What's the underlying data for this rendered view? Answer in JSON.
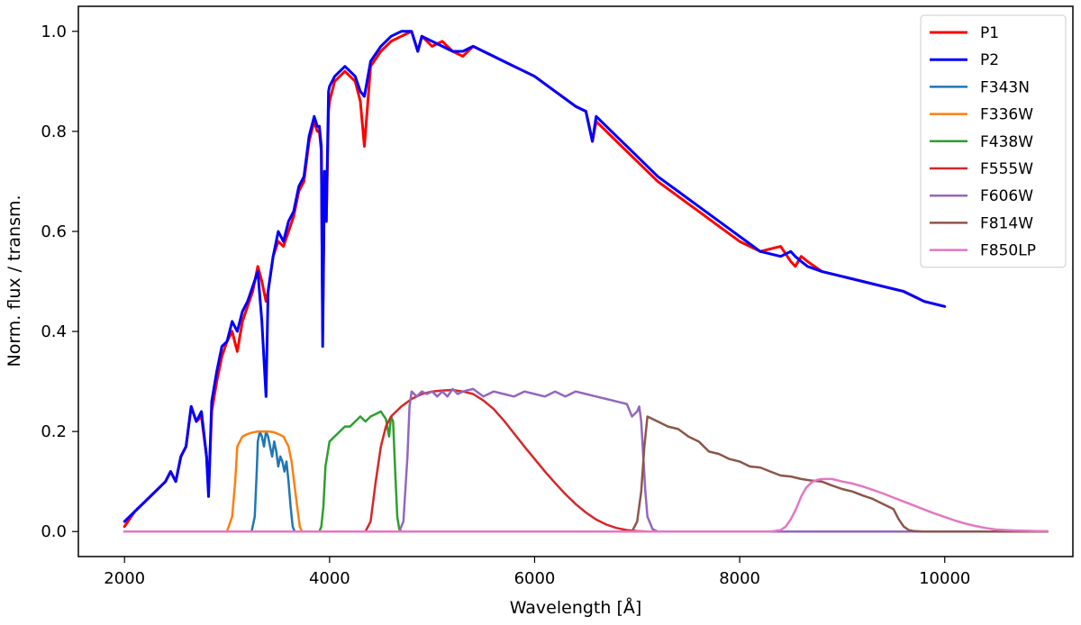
{
  "chart_data": {
    "type": "line",
    "xlabel": "Wavelength [Å]",
    "ylabel": "Norm. flux / transm.",
    "xlim": [
      1550,
      11250
    ],
    "ylim": [
      -0.05,
      1.05
    ],
    "xticks": [
      2000,
      4000,
      6000,
      8000,
      10000
    ],
    "xtick_labels": [
      "2000",
      "4000",
      "6000",
      "8000",
      "10000"
    ],
    "yticks": [
      0.0,
      0.2,
      0.4,
      0.6,
      0.8,
      1.0
    ],
    "ytick_labels": [
      "0.0",
      "0.2",
      "0.4",
      "0.6",
      "0.8",
      "1.0"
    ],
    "grid": false,
    "legend_position": "top-right",
    "series": [
      {
        "name": "P1",
        "color": "#ff0000",
        "width": 3,
        "x": [
          2000,
          2100,
          2200,
          2300,
          2400,
          2450,
          2500,
          2550,
          2600,
          2650,
          2700,
          2750,
          2800,
          2820,
          2850,
          2900,
          2950,
          3000,
          3050,
          3100,
          3150,
          3200,
          3250,
          3300,
          3340,
          3380,
          3400,
          3450,
          3500,
          3550,
          3600,
          3650,
          3700,
          3750,
          3800,
          3850,
          3880,
          3900,
          3920,
          3933,
          3950,
          3968,
          3990,
          4000,
          4050,
          4100,
          4150,
          4200,
          4250,
          4300,
          4340,
          4400,
          4500,
          4600,
          4700,
          4800,
          4861,
          4900,
          5000,
          5100,
          5200,
          5300,
          5400,
          5500,
          5600,
          5700,
          5800,
          5900,
          6000,
          6200,
          6400,
          6500,
          6563,
          6600,
          6800,
          7000,
          7200,
          7400,
          7600,
          7800,
          8000,
          8200,
          8400,
          8498,
          8542,
          8600,
          8662,
          8800,
          9000,
          9200,
          9400,
          9600,
          9800,
          10000
        ],
        "y": [
          0.01,
          0.04,
          0.06,
          0.08,
          0.1,
          0.12,
          0.1,
          0.15,
          0.17,
          0.25,
          0.22,
          0.23,
          0.15,
          0.08,
          0.24,
          0.3,
          0.35,
          0.38,
          0.4,
          0.36,
          0.42,
          0.45,
          0.48,
          0.53,
          0.5,
          0.46,
          0.48,
          0.55,
          0.58,
          0.57,
          0.6,
          0.63,
          0.68,
          0.7,
          0.78,
          0.82,
          0.8,
          0.8,
          0.76,
          0.4,
          0.72,
          0.62,
          0.84,
          0.86,
          0.9,
          0.91,
          0.92,
          0.91,
          0.9,
          0.86,
          0.77,
          0.93,
          0.96,
          0.98,
          0.99,
          1.0,
          0.96,
          0.99,
          0.97,
          0.98,
          0.96,
          0.95,
          0.97,
          0.96,
          0.95,
          0.94,
          0.93,
          0.92,
          0.91,
          0.88,
          0.85,
          0.84,
          0.78,
          0.82,
          0.78,
          0.74,
          0.7,
          0.67,
          0.64,
          0.61,
          0.58,
          0.56,
          0.57,
          0.54,
          0.53,
          0.55,
          0.54,
          0.52,
          0.51,
          0.5,
          0.49,
          0.48,
          0.46,
          0.45
        ]
      },
      {
        "name": "P2",
        "color": "#0000ff",
        "width": 3,
        "x": [
          2000,
          2100,
          2200,
          2300,
          2400,
          2450,
          2500,
          2550,
          2600,
          2650,
          2700,
          2750,
          2800,
          2820,
          2850,
          2900,
          2950,
          3000,
          3050,
          3100,
          3150,
          3200,
          3250,
          3300,
          3340,
          3380,
          3400,
          3450,
          3500,
          3550,
          3600,
          3650,
          3700,
          3750,
          3800,
          3850,
          3880,
          3900,
          3920,
          3933,
          3950,
          3968,
          3990,
          4000,
          4050,
          4100,
          4150,
          4200,
          4250,
          4300,
          4340,
          4400,
          4500,
          4600,
          4700,
          4800,
          4861,
          4900,
          5000,
          5100,
          5200,
          5300,
          5400,
          5500,
          5600,
          5700,
          5800,
          5900,
          6000,
          6200,
          6400,
          6500,
          6563,
          6600,
          6800,
          7000,
          7200,
          7400,
          7600,
          7800,
          8000,
          8200,
          8400,
          8498,
          8542,
          8600,
          8662,
          8800,
          9000,
          9200,
          9400,
          9600,
          9800,
          10000
        ],
        "y": [
          0.02,
          0.04,
          0.06,
          0.08,
          0.1,
          0.12,
          0.1,
          0.15,
          0.17,
          0.25,
          0.22,
          0.24,
          0.15,
          0.07,
          0.26,
          0.32,
          0.37,
          0.38,
          0.42,
          0.4,
          0.44,
          0.46,
          0.49,
          0.52,
          0.42,
          0.27,
          0.48,
          0.55,
          0.6,
          0.58,
          0.62,
          0.64,
          0.69,
          0.71,
          0.79,
          0.83,
          0.81,
          0.81,
          0.77,
          0.37,
          0.72,
          0.62,
          0.88,
          0.89,
          0.91,
          0.92,
          0.93,
          0.92,
          0.91,
          0.88,
          0.87,
          0.94,
          0.97,
          0.99,
          1.0,
          1.0,
          0.96,
          0.99,
          0.98,
          0.97,
          0.96,
          0.96,
          0.97,
          0.96,
          0.95,
          0.94,
          0.93,
          0.92,
          0.91,
          0.88,
          0.85,
          0.84,
          0.78,
          0.83,
          0.79,
          0.75,
          0.71,
          0.68,
          0.65,
          0.62,
          0.59,
          0.56,
          0.55,
          0.56,
          0.55,
          0.54,
          0.53,
          0.52,
          0.51,
          0.5,
          0.49,
          0.48,
          0.46,
          0.45
        ]
      },
      {
        "name": "F343N",
        "color": "#1f77b4",
        "width": 2.5,
        "x": [
          2000,
          3240,
          3270,
          3290,
          3300,
          3320,
          3340,
          3360,
          3380,
          3400,
          3420,
          3440,
          3460,
          3480,
          3500,
          3520,
          3540,
          3560,
          3580,
          3600,
          3620,
          3640,
          3660,
          11000
        ],
        "y": [
          0,
          0,
          0.03,
          0.12,
          0.18,
          0.2,
          0.19,
          0.17,
          0.2,
          0.19,
          0.17,
          0.15,
          0.18,
          0.16,
          0.13,
          0.15,
          0.14,
          0.12,
          0.14,
          0.1,
          0.05,
          0.01,
          0,
          0
        ]
      },
      {
        "name": "F336W",
        "color": "#ff7f0e",
        "width": 2.5,
        "x": [
          2000,
          3000,
          3050,
          3080,
          3100,
          3150,
          3200,
          3250,
          3300,
          3350,
          3400,
          3450,
          3500,
          3550,
          3600,
          3630,
          3660,
          3690,
          3710,
          3730,
          11000
        ],
        "y": [
          0,
          0,
          0.03,
          0.1,
          0.17,
          0.19,
          0.195,
          0.198,
          0.2,
          0.2,
          0.2,
          0.199,
          0.195,
          0.19,
          0.17,
          0.14,
          0.09,
          0.04,
          0.01,
          0,
          0
        ]
      },
      {
        "name": "F438W",
        "color": "#2ca02c",
        "width": 2.5,
        "x": [
          2000,
          3900,
          3920,
          3940,
          3960,
          4000,
          4050,
          4100,
          4150,
          4200,
          4250,
          4300,
          4350,
          4400,
          4450,
          4500,
          4550,
          4580,
          4600,
          4620,
          4640,
          4660,
          4680,
          4700,
          11000
        ],
        "y": [
          0,
          0,
          0.01,
          0.05,
          0.13,
          0.18,
          0.19,
          0.2,
          0.21,
          0.21,
          0.22,
          0.23,
          0.22,
          0.23,
          0.235,
          0.24,
          0.225,
          0.19,
          0.23,
          0.22,
          0.12,
          0.03,
          0.005,
          0,
          0
        ]
      },
      {
        "name": "F555W",
        "color": "#d62728",
        "width": 2.5,
        "x": [
          2000,
          4350,
          4400,
          4450,
          4500,
          4550,
          4600,
          4700,
          4800,
          4900,
          5000,
          5100,
          5200,
          5300,
          5400,
          5500,
          5600,
          5700,
          5800,
          5900,
          6000,
          6100,
          6200,
          6300,
          6400,
          6500,
          6600,
          6700,
          6800,
          6900,
          7000,
          7100,
          7200,
          11000
        ],
        "y": [
          0,
          0,
          0.02,
          0.1,
          0.17,
          0.21,
          0.23,
          0.25,
          0.265,
          0.275,
          0.28,
          0.282,
          0.283,
          0.28,
          0.275,
          0.262,
          0.245,
          0.222,
          0.196,
          0.17,
          0.145,
          0.12,
          0.097,
          0.075,
          0.055,
          0.038,
          0.024,
          0.014,
          0.007,
          0.003,
          0.001,
          0,
          0,
          0
        ]
      },
      {
        "name": "F606W",
        "color": "#9467bd",
        "width": 2.5,
        "x": [
          2000,
          4680,
          4720,
          4760,
          4780,
          4800,
          4850,
          4900,
          4950,
          5000,
          5050,
          5100,
          5150,
          5200,
          5250,
          5300,
          5400,
          5500,
          5600,
          5700,
          5800,
          5900,
          6000,
          6100,
          6200,
          6300,
          6400,
          6500,
          6600,
          6700,
          6800,
          6900,
          6950,
          7000,
          7020,
          7040,
          7060,
          7080,
          7100,
          7150,
          7200,
          11000
        ],
        "y": [
          0,
          0,
          0.02,
          0.15,
          0.25,
          0.28,
          0.27,
          0.28,
          0.275,
          0.28,
          0.27,
          0.28,
          0.27,
          0.285,
          0.275,
          0.28,
          0.285,
          0.27,
          0.28,
          0.275,
          0.27,
          0.28,
          0.275,
          0.27,
          0.28,
          0.27,
          0.28,
          0.275,
          0.27,
          0.265,
          0.26,
          0.255,
          0.23,
          0.24,
          0.25,
          0.22,
          0.15,
          0.08,
          0.03,
          0.005,
          0,
          0
        ]
      },
      {
        "name": "F814W",
        "color": "#8c564b",
        "width": 2.5,
        "x": [
          2000,
          6950,
          7000,
          7040,
          7070,
          7100,
          7150,
          7200,
          7300,
          7400,
          7500,
          7600,
          7700,
          7800,
          7900,
          8000,
          8100,
          8200,
          8300,
          8400,
          8500,
          8600,
          8700,
          8800,
          8900,
          9000,
          9100,
          9200,
          9300,
          9400,
          9500,
          9550,
          9600,
          9650,
          9700,
          9800,
          10000,
          11000
        ],
        "y": [
          0,
          0,
          0.02,
          0.08,
          0.17,
          0.23,
          0.225,
          0.22,
          0.21,
          0.205,
          0.19,
          0.18,
          0.16,
          0.155,
          0.145,
          0.14,
          0.13,
          0.128,
          0.12,
          0.112,
          0.11,
          0.105,
          0.102,
          0.1,
          0.092,
          0.085,
          0.08,
          0.072,
          0.065,
          0.055,
          0.045,
          0.025,
          0.01,
          0.003,
          0.001,
          0,
          0,
          0
        ]
      },
      {
        "name": "F850LP",
        "color": "#e377c2",
        "width": 2.5,
        "x": [
          2000,
          8300,
          8400,
          8450,
          8500,
          8550,
          8600,
          8650,
          8700,
          8750,
          8800,
          8900,
          9000,
          9100,
          9200,
          9300,
          9400,
          9500,
          9600,
          9700,
          9800,
          9900,
          10000,
          10100,
          10200,
          10300,
          10400,
          10500,
          10600,
          10700,
          10800,
          10900,
          11000
        ],
        "y": [
          0,
          0,
          0.003,
          0.01,
          0.025,
          0.045,
          0.07,
          0.088,
          0.098,
          0.103,
          0.105,
          0.105,
          0.1,
          0.096,
          0.09,
          0.083,
          0.076,
          0.068,
          0.06,
          0.052,
          0.044,
          0.036,
          0.029,
          0.022,
          0.016,
          0.011,
          0.007,
          0.004,
          0.003,
          0.002,
          0.0015,
          0.001,
          0.001
        ]
      }
    ]
  }
}
